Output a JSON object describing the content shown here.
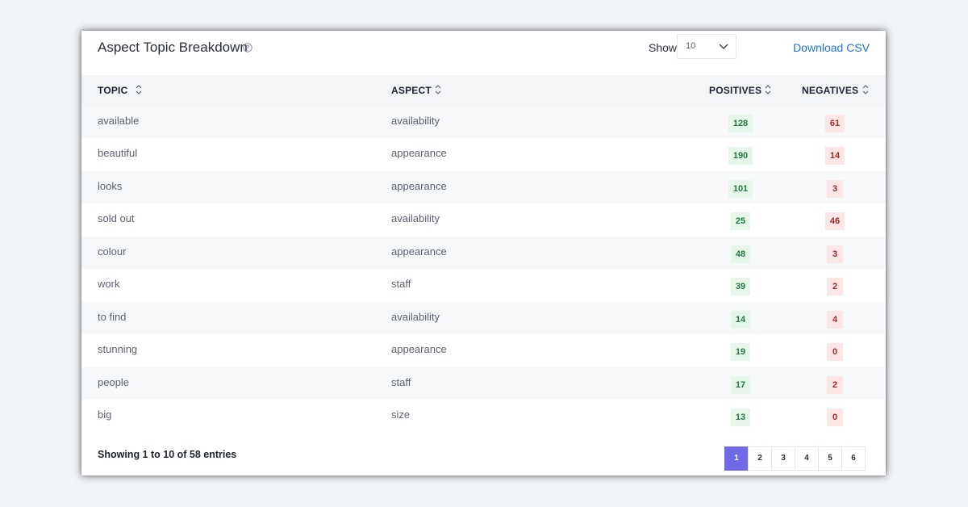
{
  "widget": {
    "title": "Aspect Topic Breakdown",
    "show_label": "Show",
    "show_value": "10",
    "download_label": "Download CSV"
  },
  "table": {
    "columns": [
      "TOPIC",
      "ASPECT",
      "POSITIVES",
      "NEGATIVES"
    ],
    "rows": [
      {
        "topic": "available",
        "aspect": "availability",
        "positives": "128",
        "negatives": "61"
      },
      {
        "topic": "beautiful",
        "aspect": "appearance",
        "positives": "190",
        "negatives": "14"
      },
      {
        "topic": "looks",
        "aspect": "appearance",
        "positives": "101",
        "negatives": "3"
      },
      {
        "topic": "sold out",
        "aspect": "availability",
        "positives": "25",
        "negatives": "46"
      },
      {
        "topic": "colour",
        "aspect": "appearance",
        "positives": "48",
        "negatives": "3"
      },
      {
        "topic": "work",
        "aspect": "staff",
        "positives": "39",
        "negatives": "2"
      },
      {
        "topic": "to find",
        "aspect": "availability",
        "positives": "14",
        "negatives": "4"
      },
      {
        "topic": "stunning",
        "aspect": "appearance",
        "positives": "19",
        "negatives": "0"
      },
      {
        "topic": "people",
        "aspect": "staff",
        "positives": "17",
        "negatives": "2"
      },
      {
        "topic": "big",
        "aspect": "size",
        "positives": "13",
        "negatives": "0"
      }
    ]
  },
  "footer": {
    "entries_text": "Showing 1 to 10 of 58 entries",
    "pages": [
      "1",
      "2",
      "3",
      "4",
      "5",
      "6"
    ],
    "active_page": "1"
  },
  "colors": {
    "accent": "#7069e8",
    "link": "#1a73c9",
    "positive_bg": "#e6f6ea",
    "positive_text": "#1f7a3d",
    "negative_bg": "#fde6e6",
    "negative_text": "#a02828"
  },
  "icons": {
    "help": "help-circle-icon",
    "dropdown": "chevron-down-icon",
    "sort": "sort-icon"
  }
}
